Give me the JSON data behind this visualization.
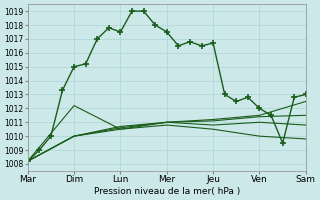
{
  "xlabel": "Pression niveau de la mer( hPa )",
  "background_color": "#cce8e8",
  "grid_color": "#aad4d4",
  "line_color_dark": "#1a5c1a",
  "line_color_med": "#2e7d2e",
  "x_labels": [
    "Mar",
    "Dim",
    "Lun",
    "Mer",
    "Jeu",
    "Ven",
    "Sam"
  ],
  "x_positions": [
    0,
    2,
    4,
    6,
    8,
    10,
    12
  ],
  "ylim": [
    1007.5,
    1019.5
  ],
  "yticks": [
    1008,
    1009,
    1010,
    1011,
    1012,
    1013,
    1014,
    1015,
    1016,
    1017,
    1018,
    1019
  ],
  "series1_x": [
    0,
    0.5,
    1,
    1.5,
    2,
    2.5,
    3,
    3.5,
    4,
    4.5,
    5,
    5.5,
    6,
    6.5,
    7,
    7.5,
    8,
    8.5,
    9,
    9.5,
    10,
    10.5,
    11,
    11.5,
    12
  ],
  "series1_y": [
    1008.2,
    1009.0,
    1010.0,
    1013.3,
    1015.0,
    1015.2,
    1017.0,
    1017.8,
    1017.5,
    1019.0,
    1019.0,
    1018.0,
    1017.5,
    1016.5,
    1016.8,
    1016.5,
    1016.7,
    1013.0,
    1012.5,
    1012.8,
    1012.0,
    1011.5,
    1009.5,
    1012.8,
    1013.0
  ],
  "series2_x": [
    0,
    2,
    4,
    6,
    8,
    10,
    12
  ],
  "series2_y": [
    1008.2,
    1012.2,
    1010.5,
    1011.0,
    1011.2,
    1011.5,
    1012.5
  ],
  "series3_x": [
    0,
    2,
    4,
    6,
    8,
    10,
    12
  ],
  "series3_y": [
    1008.2,
    1010.0,
    1010.7,
    1011.0,
    1011.1,
    1011.4,
    1011.5
  ],
  "series4_x": [
    0,
    2,
    4,
    6,
    8,
    10,
    12
  ],
  "series4_y": [
    1008.2,
    1010.0,
    1010.6,
    1011.0,
    1010.8,
    1011.0,
    1010.8
  ],
  "series5_x": [
    0,
    2,
    4,
    6,
    8,
    10,
    12
  ],
  "series5_y": [
    1008.2,
    1010.0,
    1010.5,
    1010.8,
    1010.5,
    1010.0,
    1009.8
  ]
}
